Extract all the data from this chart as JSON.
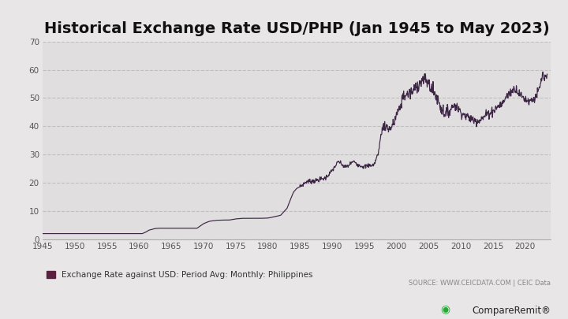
{
  "title": "Historical Exchange Rate USD/PHP (Jan 1945 to May 2023)",
  "title_fontsize": 14,
  "title_fontweight": "bold",
  "legend_label": "Exchange Rate against USD: Period Avg: Monthly: Philippines",
  "source_text": "SOURCE: WWW.CEICDATA.COM | CEIC Data",
  "line_color": "#3d2645",
  "bg_color": "#e8e6e6",
  "plot_bg_color": "#e0dede",
  "xlim": [
    1945,
    2024
  ],
  "ylim": [
    0,
    70
  ],
  "yticks": [
    0,
    10,
    20,
    30,
    40,
    50,
    60,
    70
  ],
  "xticks": [
    1945,
    1950,
    1955,
    1960,
    1965,
    1970,
    1975,
    1980,
    1985,
    1990,
    1995,
    2000,
    2005,
    2010,
    2015,
    2020
  ],
  "grid_color": "#c0bebe",
  "legend_square_color": "#5a2040",
  "data_points": [
    [
      1945.0,
      2.0
    ],
    [
      1945.5,
      2.0
    ],
    [
      1946.0,
      2.0
    ],
    [
      1947.0,
      2.0
    ],
    [
      1948.0,
      2.0
    ],
    [
      1949.0,
      2.0
    ],
    [
      1950.0,
      2.0
    ],
    [
      1951.0,
      2.0
    ],
    [
      1952.0,
      2.0
    ],
    [
      1953.0,
      2.0
    ],
    [
      1954.0,
      2.0
    ],
    [
      1955.0,
      2.0
    ],
    [
      1956.0,
      2.0
    ],
    [
      1957.0,
      2.0
    ],
    [
      1958.0,
      2.0
    ],
    [
      1959.0,
      2.0
    ],
    [
      1960.0,
      2.0
    ],
    [
      1960.5,
      2.0
    ],
    [
      1961.0,
      2.5
    ],
    [
      1961.5,
      3.2
    ],
    [
      1962.0,
      3.5
    ],
    [
      1962.5,
      3.8
    ],
    [
      1963.0,
      3.9
    ],
    [
      1964.0,
      3.9
    ],
    [
      1965.0,
      3.9
    ],
    [
      1966.0,
      3.9
    ],
    [
      1967.0,
      3.9
    ],
    [
      1968.0,
      3.9
    ],
    [
      1969.0,
      3.9
    ],
    [
      1970.0,
      5.5
    ],
    [
      1970.5,
      6.0
    ],
    [
      1971.0,
      6.4
    ],
    [
      1972.0,
      6.7
    ],
    [
      1973.0,
      6.8
    ],
    [
      1974.0,
      6.8
    ],
    [
      1975.0,
      7.2
    ],
    [
      1976.0,
      7.4
    ],
    [
      1977.0,
      7.4
    ],
    [
      1978.0,
      7.4
    ],
    [
      1979.0,
      7.4
    ],
    [
      1980.0,
      7.5
    ],
    [
      1980.5,
      7.7
    ],
    [
      1981.0,
      8.0
    ],
    [
      1981.5,
      8.2
    ],
    [
      1982.0,
      8.5
    ],
    [
      1983.0,
      11.0
    ],
    [
      1983.5,
      14.0
    ],
    [
      1984.0,
      16.7
    ],
    [
      1984.5,
      18.0
    ],
    [
      1985.0,
      18.6
    ],
    [
      1985.5,
      19.5
    ],
    [
      1986.0,
      20.4
    ],
    [
      1986.5,
      20.5
    ],
    [
      1987.0,
      20.6
    ],
    [
      1987.5,
      20.8
    ],
    [
      1988.0,
      21.1
    ],
    [
      1988.5,
      21.4
    ],
    [
      1989.0,
      21.7
    ],
    [
      1990.0,
      24.3
    ],
    [
      1990.5,
      26.0
    ],
    [
      1991.0,
      27.5
    ],
    [
      1991.5,
      26.5
    ],
    [
      1992.0,
      25.5
    ],
    [
      1992.5,
      26.0
    ],
    [
      1993.0,
      27.1
    ],
    [
      1993.5,
      27.5
    ],
    [
      1994.0,
      26.4
    ],
    [
      1994.5,
      26.0
    ],
    [
      1995.0,
      25.7
    ],
    [
      1995.5,
      26.0
    ],
    [
      1996.0,
      26.2
    ],
    [
      1996.5,
      26.3
    ],
    [
      1997.0,
      29.5
    ],
    [
      1997.3,
      32.0
    ],
    [
      1997.5,
      36.0
    ],
    [
      1997.8,
      39.0
    ],
    [
      1998.0,
      40.9
    ],
    [
      1998.5,
      39.5
    ],
    [
      1999.0,
      39.1
    ],
    [
      1999.5,
      40.5
    ],
    [
      2000.0,
      44.2
    ],
    [
      2000.5,
      46.0
    ],
    [
      2001.0,
      50.9
    ],
    [
      2001.5,
      51.0
    ],
    [
      2002.0,
      51.6
    ],
    [
      2002.5,
      52.0
    ],
    [
      2003.0,
      54.2
    ],
    [
      2003.5,
      55.0
    ],
    [
      2004.0,
      56.0
    ],
    [
      2004.5,
      56.5
    ],
    [
      2005.0,
      55.1
    ],
    [
      2005.5,
      53.0
    ],
    [
      2006.0,
      51.3
    ],
    [
      2006.5,
      49.0
    ],
    [
      2007.0,
      46.1
    ],
    [
      2007.5,
      44.8
    ],
    [
      2008.0,
      44.5
    ],
    [
      2008.5,
      46.5
    ],
    [
      2009.0,
      47.6
    ],
    [
      2009.5,
      46.5
    ],
    [
      2010.0,
      45.1
    ],
    [
      2010.5,
      44.0
    ],
    [
      2011.0,
      43.3
    ],
    [
      2011.5,
      42.8
    ],
    [
      2012.0,
      42.2
    ],
    [
      2012.5,
      42.0
    ],
    [
      2013.0,
      42.4
    ],
    [
      2013.5,
      43.0
    ],
    [
      2014.0,
      44.4
    ],
    [
      2014.5,
      44.8
    ],
    [
      2015.0,
      45.5
    ],
    [
      2015.5,
      46.5
    ],
    [
      2016.0,
      47.5
    ],
    [
      2016.5,
      48.0
    ],
    [
      2017.0,
      50.4
    ],
    [
      2017.5,
      51.5
    ],
    [
      2018.0,
      52.7
    ],
    [
      2018.5,
      53.5
    ],
    [
      2019.0,
      51.8
    ],
    [
      2019.5,
      50.5
    ],
    [
      2020.0,
      49.6
    ],
    [
      2020.5,
      49.0
    ],
    [
      2021.0,
      49.3
    ],
    [
      2021.5,
      50.0
    ],
    [
      2022.0,
      52.0
    ],
    [
      2022.3,
      54.0
    ],
    [
      2022.5,
      56.0
    ],
    [
      2022.7,
      58.5
    ],
    [
      2023.0,
      56.5
    ],
    [
      2023.4,
      57.5
    ]
  ]
}
